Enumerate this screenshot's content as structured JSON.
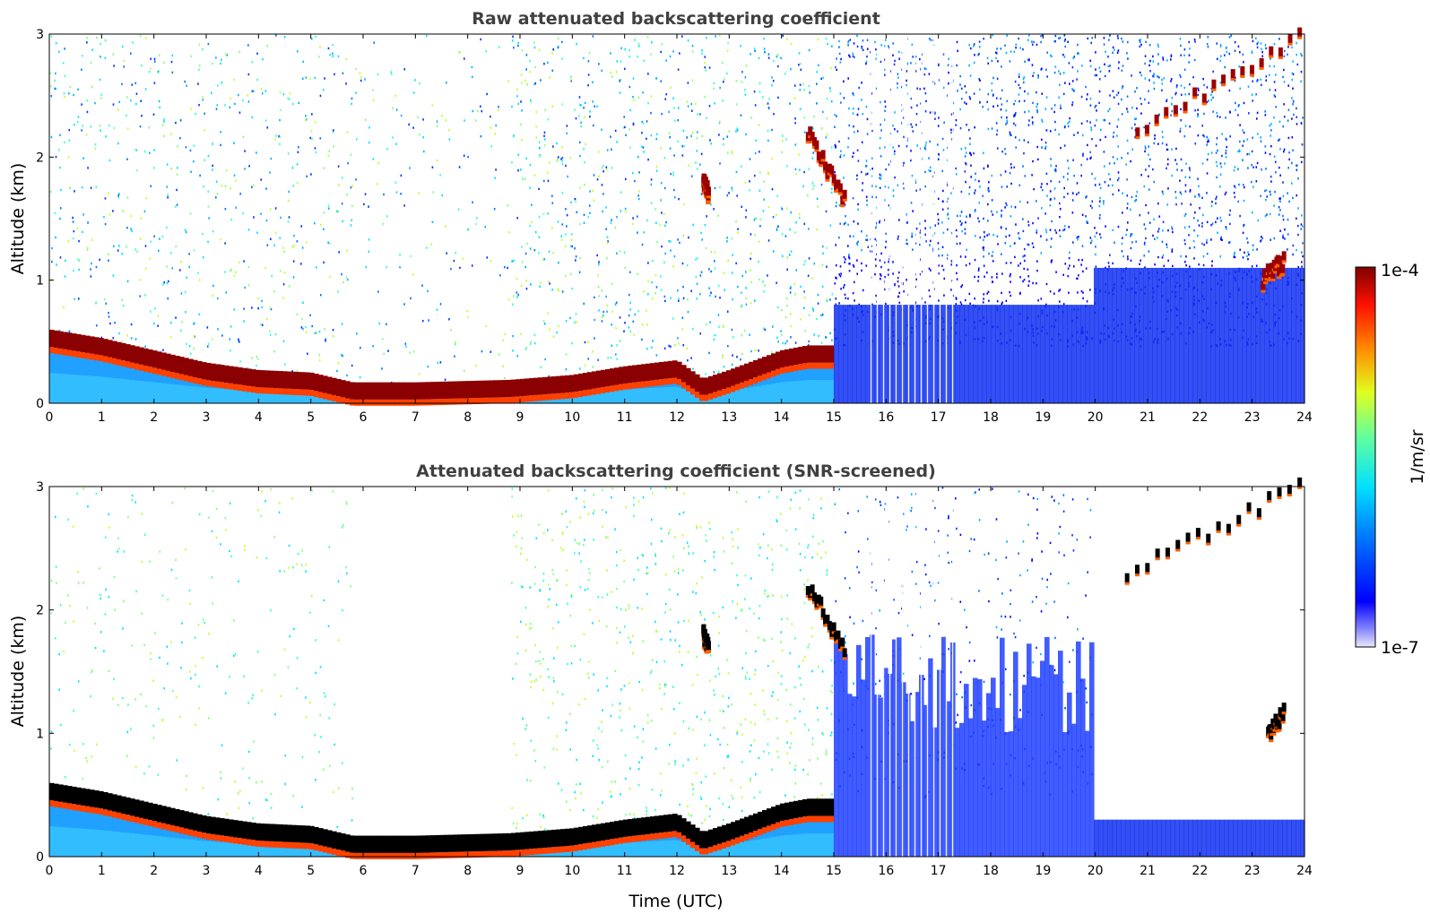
{
  "chart_data": [
    {
      "type": "heatmap",
      "title": "Raw attenuated backscattering coefficient",
      "xlabel": "",
      "ylabel": "Altitude (km)",
      "xlim": [
        0,
        24
      ],
      "ylim": [
        0,
        3
      ],
      "xticks": [
        "0",
        "1",
        "2",
        "3",
        "4",
        "5",
        "6",
        "7",
        "8",
        "9",
        "10",
        "11",
        "12",
        "13",
        "14",
        "15",
        "16",
        "17",
        "18",
        "19",
        "20",
        "21",
        "22",
        "23",
        "24"
      ],
      "yticks": [
        "0",
        "1",
        "2",
        "3"
      ],
      "grid": false,
      "screened": false,
      "boundary_layer_top_km": [
        {
          "t": 0,
          "z": 0.55
        },
        {
          "t": 1,
          "z": 0.48
        },
        {
          "t": 2,
          "z": 0.38
        },
        {
          "t": 3,
          "z": 0.28
        },
        {
          "t": 4,
          "z": 0.22
        },
        {
          "t": 5,
          "z": 0.2
        },
        {
          "t": 5.8,
          "z": 0.12
        },
        {
          "t": 7,
          "z": 0.12
        },
        {
          "t": 8.8,
          "z": 0.14
        },
        {
          "t": 10,
          "z": 0.18
        },
        {
          "t": 11,
          "z": 0.25
        },
        {
          "t": 12,
          "z": 0.3
        },
        {
          "t": 12.5,
          "z": 0.15
        },
        {
          "t": 13,
          "z": 0.22
        },
        {
          "t": 14,
          "z": 0.38
        },
        {
          "t": 14.5,
          "z": 0.42
        }
      ],
      "cloud_features": [
        {
          "t_start": 14.5,
          "t_end": 15.2,
          "z_start_km": 2.2,
          "z_end_km": 1.65
        },
        {
          "t_start": 12.5,
          "t_end": 12.6,
          "z_start_km": 1.8,
          "z_end_km": 1.7
        },
        {
          "t_start": 20.8,
          "t_end": 23.9,
          "z_start_km": 2.2,
          "z_end_km": 3.0
        },
        {
          "t_start": 23.2,
          "t_end": 23.6,
          "z_start_km": 1.0,
          "z_end_km": 1.15
        }
      ]
    },
    {
      "type": "heatmap",
      "title": "Attenuated backscattering coefficient (SNR-screened)",
      "xlabel": "Time (UTC)",
      "ylabel": "Altitude (km)",
      "xlim": [
        0,
        24
      ],
      "ylim": [
        0,
        3
      ],
      "xticks": [
        "0",
        "1",
        "2",
        "3",
        "4",
        "5",
        "6",
        "7",
        "8",
        "9",
        "10",
        "11",
        "12",
        "13",
        "14",
        "15",
        "16",
        "17",
        "18",
        "19",
        "20",
        "21",
        "22",
        "23",
        "24"
      ],
      "yticks": [
        "0",
        "1",
        "2",
        "3"
      ],
      "grid": false,
      "screened": true,
      "boundary_layer_top_km": [
        {
          "t": 0,
          "z": 0.55
        },
        {
          "t": 1,
          "z": 0.48
        },
        {
          "t": 2,
          "z": 0.38
        },
        {
          "t": 3,
          "z": 0.28
        },
        {
          "t": 4,
          "z": 0.22
        },
        {
          "t": 5,
          "z": 0.2
        },
        {
          "t": 5.8,
          "z": 0.12
        },
        {
          "t": 7,
          "z": 0.12
        },
        {
          "t": 8.8,
          "z": 0.14
        },
        {
          "t": 10,
          "z": 0.18
        },
        {
          "t": 11,
          "z": 0.25
        },
        {
          "t": 12,
          "z": 0.3
        },
        {
          "t": 12.5,
          "z": 0.15
        },
        {
          "t": 13,
          "z": 0.22
        },
        {
          "t": 14,
          "z": 0.38
        },
        {
          "t": 14.5,
          "z": 0.42
        }
      ],
      "cloud_features": [
        {
          "t_start": 14.5,
          "t_end": 15.2,
          "z_start_km": 2.2,
          "z_end_km": 1.65
        },
        {
          "t_start": 12.5,
          "t_end": 12.6,
          "z_start_km": 1.8,
          "z_end_km": 1.7
        },
        {
          "t_start": 20.6,
          "t_end": 23.9,
          "z_start_km": 2.3,
          "z_end_km": 3.0
        },
        {
          "t_start": 23.3,
          "t_end": 23.6,
          "z_start_km": 1.0,
          "z_end_km": 1.15
        }
      ]
    }
  ],
  "colorbar": {
    "label": "1/m/sr",
    "max_label": "1e-4",
    "min_label": "1e-7",
    "scale": "log",
    "colormap": "jet",
    "min_value": 1e-07,
    "max_value": 0.0001
  },
  "colors": {
    "title": "#404040",
    "jet": [
      "#e8e8f8",
      "#0000ff",
      "#0060ff",
      "#00c0ff",
      "#40ffc0",
      "#c0ff40",
      "#ffc000",
      "#ff4000",
      "#800000"
    ]
  }
}
